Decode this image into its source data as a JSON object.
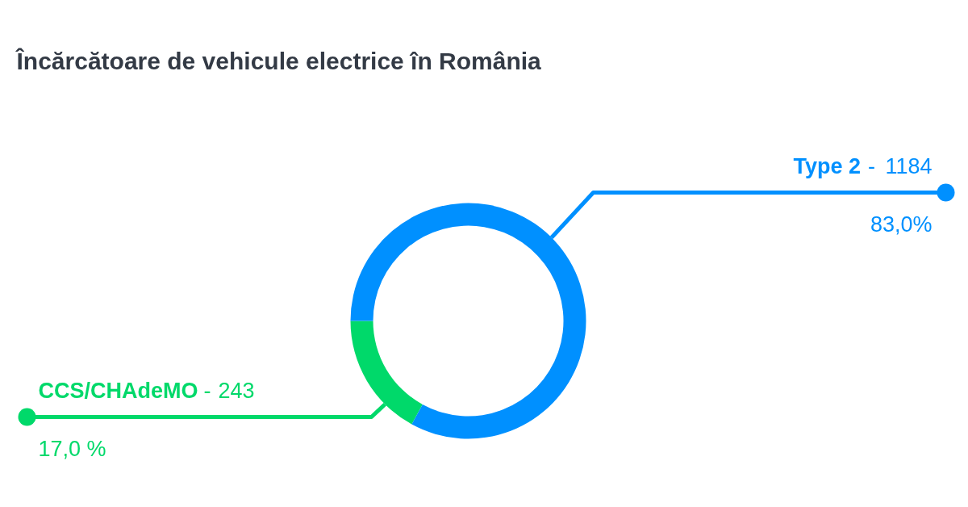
{
  "chart_data": {
    "type": "donut",
    "title": "Încărcătoare de vehicule electrice în România",
    "categories": [
      "Type 2",
      "CCS/CHAdeMO"
    ],
    "values": [
      1184,
      243
    ],
    "colors": [
      "#0090ff",
      "#00d96a"
    ],
    "value_labels": [
      "1184",
      "243"
    ],
    "annotations": [
      "-",
      "83,0%",
      "-",
      "17,0 %"
    ]
  }
}
